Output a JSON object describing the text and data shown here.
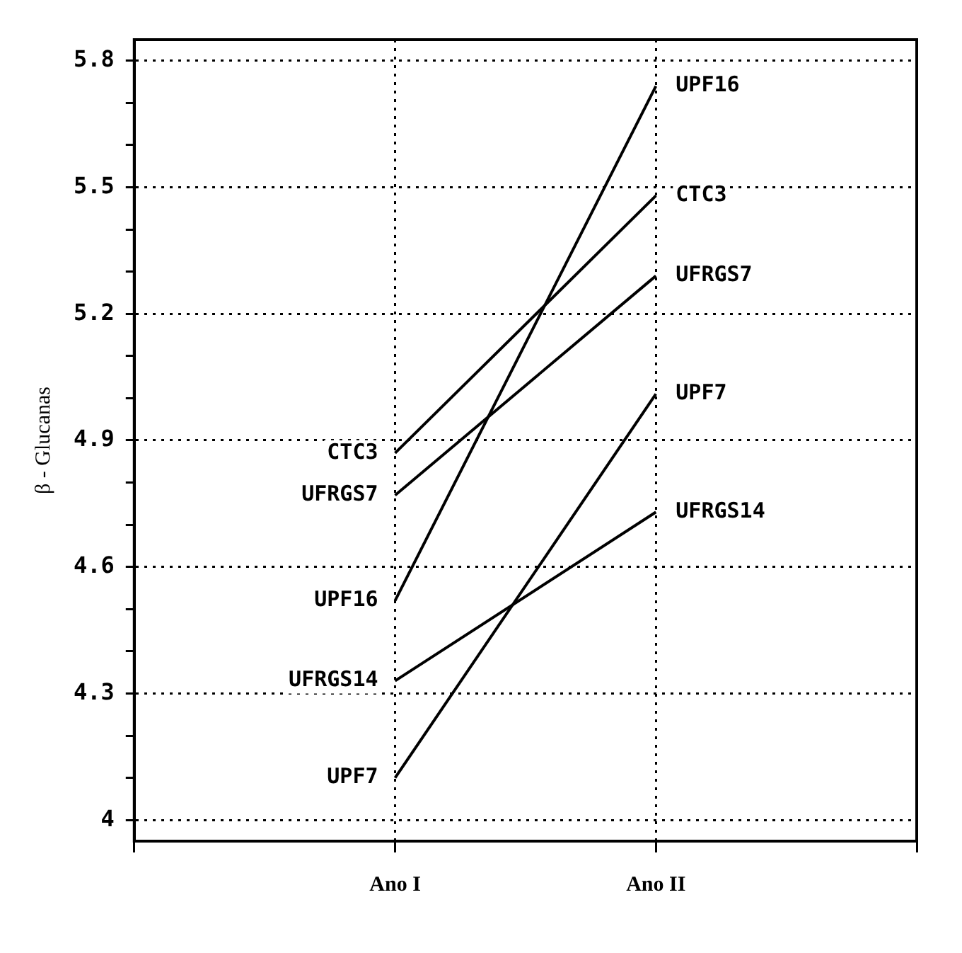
{
  "chart_data": {
    "type": "line",
    "ylabel": "β - Glucanas",
    "categories": [
      null,
      "Ano I",
      "Ano II",
      null
    ],
    "series": [
      {
        "name": "UPF16",
        "color": "#000000",
        "values": [
          null,
          4.52,
          5.74,
          null
        ]
      },
      {
        "name": "CTC3",
        "color": "#000000",
        "values": [
          null,
          4.87,
          5.48,
          null
        ]
      },
      {
        "name": "UFRGS7",
        "color": "#000000",
        "values": [
          null,
          4.77,
          5.29,
          null
        ]
      },
      {
        "name": "UPF7",
        "color": "#000000",
        "values": [
          null,
          4.1,
          5.01,
          null
        ]
      },
      {
        "name": "UFRGS14",
        "color": "#000000",
        "values": [
          null,
          4.33,
          4.73,
          null
        ]
      }
    ],
    "ylim": [
      3.95,
      5.85
    ],
    "yticks": [
      4,
      {
        "value": 4.1,
        "label": null
      },
      {
        "value": 4.2,
        "label": null
      },
      4.3,
      {
        "value": 4.4,
        "label": null
      },
      {
        "value": 4.5,
        "label": null
      },
      4.6,
      {
        "value": 4.7,
        "label": null
      },
      {
        "value": 4.8,
        "label": null
      },
      4.9,
      {
        "value": 5.0,
        "label": null
      },
      {
        "value": 5.1,
        "label": null
      },
      5.2,
      {
        "value": 5.3,
        "label": null
      },
      {
        "value": 5.4,
        "label": null
      },
      5.5,
      {
        "value": 5.6,
        "label": null
      },
      {
        "value": 5.7,
        "label": null
      },
      5.8
    ],
    "grid": true,
    "legend": false,
    "marker": "none",
    "line_style": "solid"
  }
}
